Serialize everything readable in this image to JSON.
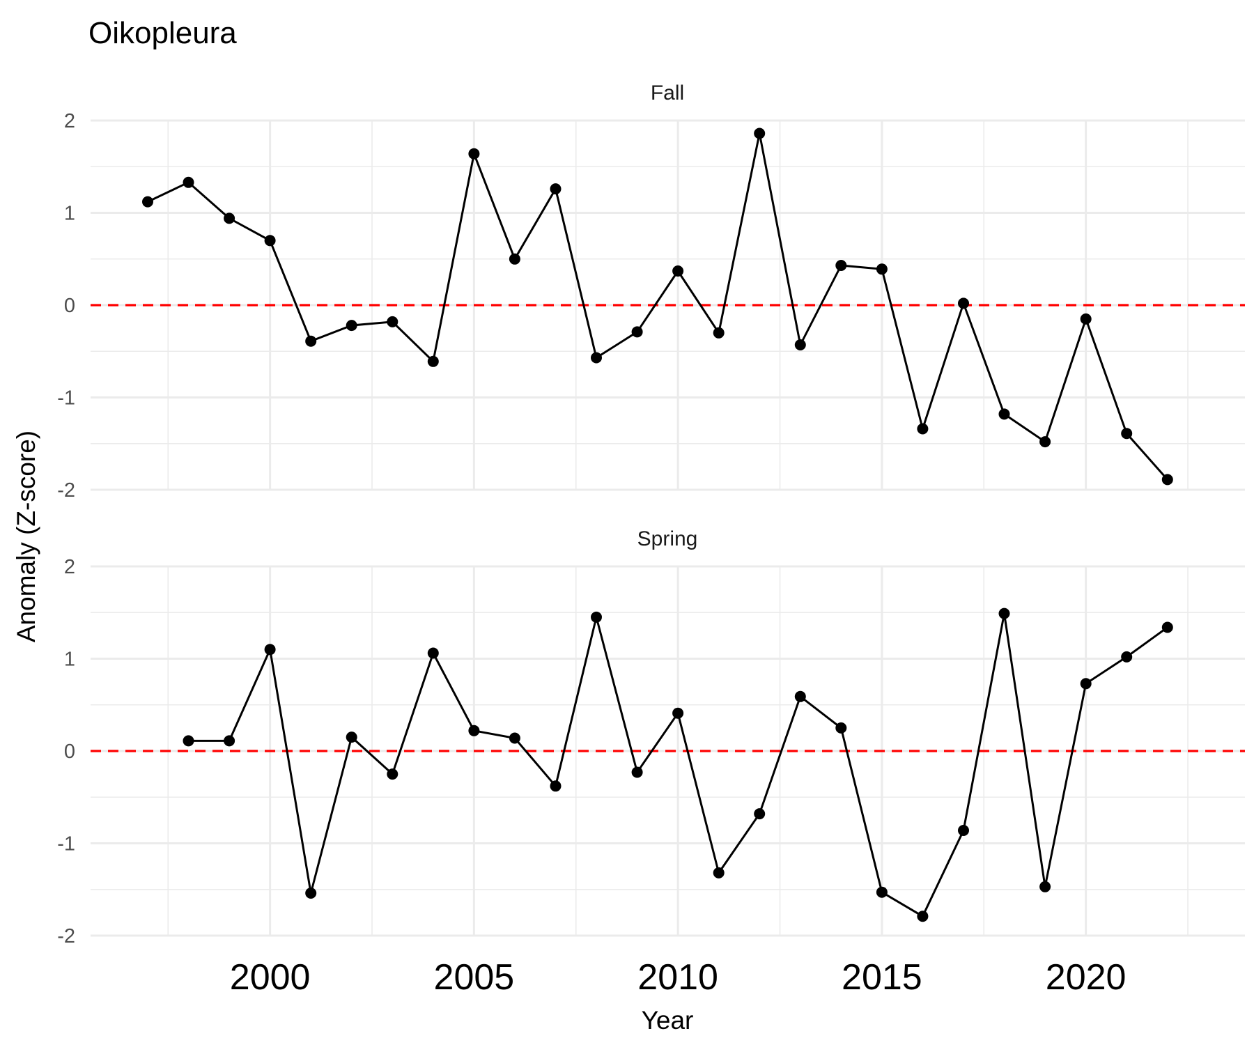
{
  "chart_data": {
    "type": "line",
    "title": "Oikopleura",
    "xlabel": "Year",
    "ylabel": "Anomaly (Z-score)",
    "xlim": [
      1995.6,
      2023.9
    ],
    "ylim": [
      -2,
      2
    ],
    "x_ticks": [
      2000,
      2005,
      2010,
      2015,
      2020
    ],
    "y_ticks": [
      2,
      1,
      0,
      -1,
      -2
    ],
    "reference_line": {
      "y": 0,
      "style": "dashed",
      "color": "#ff0000"
    },
    "grid": true,
    "legend": "none",
    "panels": [
      {
        "name": "Fall",
        "x": [
          1997,
          1998,
          1999,
          2000,
          2001,
          2002,
          2003,
          2004,
          2005,
          2006,
          2007,
          2008,
          2009,
          2010,
          2011,
          2012,
          2013,
          2014,
          2015,
          2016,
          2017,
          2018,
          2019,
          2020,
          2021,
          2022
        ],
        "values": [
          1.12,
          1.33,
          0.94,
          0.7,
          -0.39,
          -0.22,
          -0.18,
          -0.61,
          1.64,
          0.5,
          1.26,
          -0.57,
          -0.29,
          0.37,
          -0.3,
          1.86,
          -0.43,
          0.43,
          0.39,
          -1.34,
          0.02,
          -1.18,
          -1.48,
          -0.15,
          -1.39,
          -1.89
        ]
      },
      {
        "name": "Spring",
        "x": [
          1998,
          1999,
          2000,
          2001,
          2002,
          2003,
          2004,
          2005,
          2006,
          2007,
          2008,
          2009,
          2010,
          2011,
          2012,
          2013,
          2014,
          2015,
          2016,
          2017,
          2018,
          2019,
          2020,
          2021,
          2022
        ],
        "values": [
          0.11,
          0.11,
          1.1,
          -1.54,
          0.15,
          -0.25,
          1.06,
          0.22,
          0.14,
          -0.38,
          1.45,
          -0.23,
          0.41,
          -1.32,
          -0.68,
          0.59,
          0.25,
          -1.53,
          -1.79,
          -0.86,
          1.49,
          -1.47,
          0.73,
          1.02,
          1.34
        ]
      }
    ]
  }
}
